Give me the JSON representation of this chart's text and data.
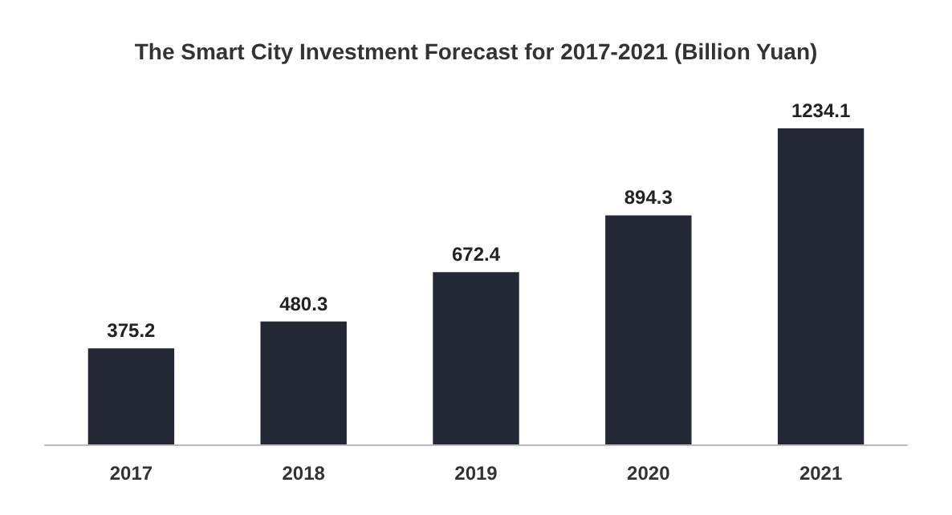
{
  "chart_data": {
    "type": "bar",
    "title": "The Smart City Investment Forecast for 2017-2021 (Billion Yuan)",
    "categories": [
      "2017",
      "2018",
      "2019",
      "2020",
      "2021"
    ],
    "values": [
      375.2,
      480.3,
      672.4,
      894.3,
      1234.1
    ],
    "color": "#232834",
    "data_labels": true
  }
}
